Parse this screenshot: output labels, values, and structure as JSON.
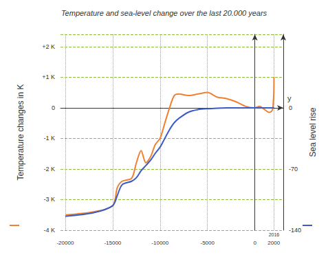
{
  "chart_data": {
    "type": "line",
    "title": "Temperature and sea-level change over the last 20.000 years",
    "x_label": "y",
    "y_label": "Temperature changes in K",
    "y2_label": "Sea level rise",
    "x": [
      -20000,
      -17000,
      -15000,
      -14500,
      -14000,
      -13000,
      -12500,
      -12000,
      -11500,
      -11000,
      -10500,
      -10000,
      -9500,
      -9000,
      -8500,
      -8000,
      -7000,
      -6000,
      -5000,
      -4000,
      -3000,
      -2000,
      -1000,
      0,
      500,
      1000,
      1500,
      1800,
      1900,
      1950,
      2000,
      2016
    ],
    "series": [
      {
        "name": "Temperature changes in K",
        "color": "#f08030",
        "values": [
          -3.5,
          -3.4,
          -3.2,
          -2.6,
          -2.4,
          -2.3,
          -1.8,
          -1.4,
          -1.8,
          -1.6,
          -1.2,
          -1.0,
          -0.5,
          0.0,
          0.4,
          0.45,
          0.4,
          0.45,
          0.5,
          0.35,
          0.3,
          0.2,
          0.05,
          0.0,
          0.05,
          -0.05,
          -0.15,
          -0.1,
          0.0,
          0.2,
          0.5,
          1.0
        ]
      },
      {
        "name": "Sea level rise",
        "color": "#3a5bc7",
        "axis": "y2",
        "values": [
          -124,
          -120,
          -112,
          -100,
          -88,
          -84,
          -80,
          -72,
          -66,
          -60,
          -52,
          -45,
          -35,
          -25,
          -17,
          -12,
          -5,
          -2,
          -1,
          -0.5,
          0,
          0,
          0,
          0,
          0,
          0,
          0,
          0,
          0,
          0,
          0,
          0.1
        ]
      }
    ],
    "xlim": [
      -20500,
      3000
    ],
    "xticks": [
      -20000,
      -15000,
      -10000,
      -5000,
      0,
      2000
    ],
    "ylim": [
      -4,
      2.4
    ],
    "yticks": [
      {
        "value": -4,
        "label": "-4 K"
      },
      {
        "value": -3,
        "label": "-3 K"
      },
      {
        "value": -2,
        "label": "-2 K"
      },
      {
        "value": -1,
        "label": "-1 K"
      },
      0,
      {
        "value": 1,
        "label": "+1 K"
      },
      {
        "value": 2,
        "label": "+2 K"
      }
    ],
    "y2lim": [
      -140,
      84
    ],
    "y2ticks": [
      -140,
      -70,
      0
    ],
    "annotations": [
      {
        "x": 2016,
        "text": "2016"
      }
    ],
    "grid": true
  }
}
